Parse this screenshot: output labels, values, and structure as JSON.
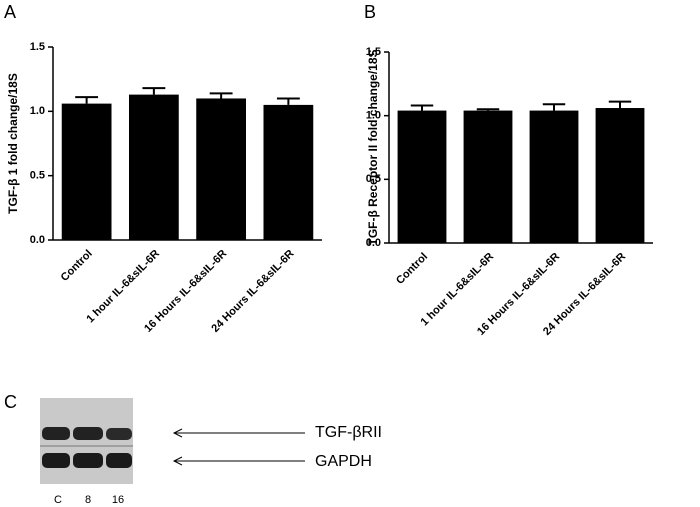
{
  "chart_data": [
    {
      "type": "bar",
      "panel_label": "A",
      "y_label": "TGF-β 1 fold change/18S",
      "categories": [
        "Control",
        "1 hour IL-6&sIL-6R",
        "16 Hours IL-6&sIL-6R",
        "24 Hours IL-6&sIL-6R"
      ],
      "values": [
        1.06,
        1.13,
        1.1,
        1.05
      ],
      "errors": [
        0.05,
        0.05,
        0.04,
        0.05
      ],
      "color": "#000000",
      "ylim": [
        0,
        1.5
      ],
      "yticks": [
        {
          "value": 0,
          "label": "0.0"
        },
        0.5,
        {
          "value": 1,
          "label": "1.0"
        },
        1.5
      ]
    },
    {
      "type": "bar",
      "panel_label": "B",
      "y_label": "TGF-β Receptor II fold change/18S",
      "categories": [
        "Control",
        "1 hour IL-6&sIL-6R",
        "16 Hours IL-6&sIL-6R",
        "24 Hours IL-6&sIL-6R"
      ],
      "values": [
        1.04,
        1.04,
        1.04,
        1.06
      ],
      "errors": [
        0.04,
        0.01,
        0.05,
        0.05
      ],
      "color": "#000000",
      "ylim": [
        0,
        1.5
      ],
      "yticks": [
        {
          "value": 0,
          "label": "0.0"
        },
        0.5,
        {
          "value": 1,
          "label": "1.0"
        },
        1.5
      ]
    }
  ],
  "blot": {
    "panel_label": "C",
    "labels": [
      "TGF-βRII",
      "GAPDH"
    ],
    "lanes": [
      "C",
      "8",
      "16"
    ]
  }
}
